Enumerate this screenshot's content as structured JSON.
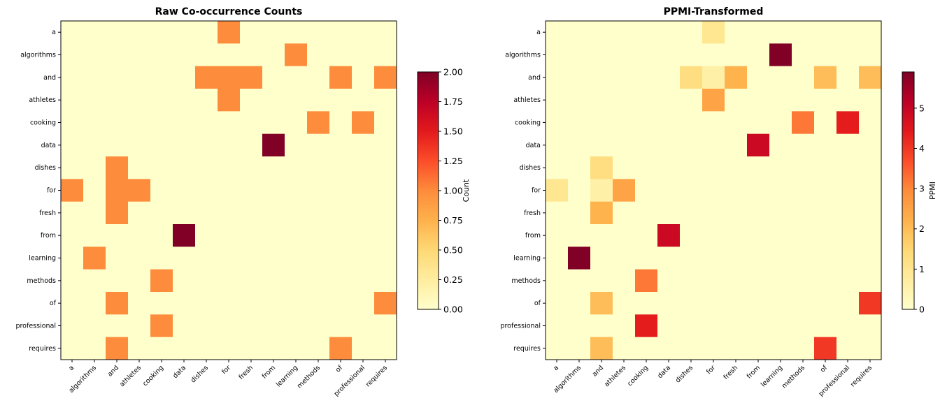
{
  "chart_data": [
    {
      "type": "heatmap",
      "title": "Raw Co-occurrence Counts",
      "colorbar_label": "Count",
      "colormap": "YlOrRd",
      "vmin": 0,
      "vmax": 2,
      "colorbar_ticks": [
        "0.00",
        "0.25",
        "0.50",
        "0.75",
        "1.00",
        "1.25",
        "1.50",
        "1.75",
        "2.00"
      ],
      "labels": [
        "a",
        "algorithms",
        "and",
        "athletes",
        "cooking",
        "data",
        "dishes",
        "for",
        "fresh",
        "from",
        "learning",
        "methods",
        "of",
        "professional",
        "requires"
      ],
      "values": [
        [
          0,
          0,
          0,
          0,
          0,
          0,
          0,
          1,
          0,
          0,
          0,
          0,
          0,
          0,
          0
        ],
        [
          0,
          0,
          0,
          0,
          0,
          0,
          0,
          0,
          0,
          0,
          1,
          0,
          0,
          0,
          0
        ],
        [
          0,
          0,
          0,
          0,
          0,
          0,
          1,
          1,
          1,
          0,
          0,
          0,
          1,
          0,
          1
        ],
        [
          0,
          0,
          0,
          0,
          0,
          0,
          0,
          1,
          0,
          0,
          0,
          0,
          0,
          0,
          0
        ],
        [
          0,
          0,
          0,
          0,
          0,
          0,
          0,
          0,
          0,
          0,
          0,
          1,
          0,
          1,
          0
        ],
        [
          0,
          0,
          0,
          0,
          0,
          0,
          0,
          0,
          0,
          2,
          0,
          0,
          0,
          0,
          0
        ],
        [
          0,
          0,
          1,
          0,
          0,
          0,
          0,
          0,
          0,
          0,
          0,
          0,
          0,
          0,
          0
        ],
        [
          1,
          0,
          1,
          1,
          0,
          0,
          0,
          0,
          0,
          0,
          0,
          0,
          0,
          0,
          0
        ],
        [
          0,
          0,
          1,
          0,
          0,
          0,
          0,
          0,
          0,
          0,
          0,
          0,
          0,
          0,
          0
        ],
        [
          0,
          0,
          0,
          0,
          0,
          2,
          0,
          0,
          0,
          0,
          0,
          0,
          0,
          0,
          0
        ],
        [
          0,
          1,
          0,
          0,
          0,
          0,
          0,
          0,
          0,
          0,
          0,
          0,
          0,
          0,
          0
        ],
        [
          0,
          0,
          0,
          0,
          1,
          0,
          0,
          0,
          0,
          0,
          0,
          0,
          0,
          0,
          0
        ],
        [
          0,
          0,
          1,
          0,
          0,
          0,
          0,
          0,
          0,
          0,
          0,
          0,
          0,
          0,
          1
        ],
        [
          0,
          0,
          0,
          0,
          1,
          0,
          0,
          0,
          0,
          0,
          0,
          0,
          0,
          0,
          0
        ],
        [
          0,
          0,
          1,
          0,
          0,
          0,
          0,
          0,
          0,
          0,
          0,
          0,
          1,
          0,
          0
        ]
      ]
    },
    {
      "type": "heatmap",
      "title": "PPMI-Transformed",
      "colorbar_label": "PPMI",
      "colormap": "YlOrRd",
      "vmin": 0,
      "vmax": 5.9,
      "colorbar_ticks": [
        "0",
        "1",
        "2",
        "3",
        "4",
        "5"
      ],
      "labels": [
        "a",
        "algorithms",
        "and",
        "athletes",
        "cooking",
        "data",
        "dishes",
        "for",
        "fresh",
        "from",
        "learning",
        "methods",
        "of",
        "professional",
        "requires"
      ],
      "values": [
        [
          0,
          0,
          0,
          0,
          0,
          0,
          0,
          1.0,
          0,
          0,
          0,
          0,
          0,
          0,
          0
        ],
        [
          0,
          0,
          0,
          0,
          0,
          0,
          0,
          0,
          0,
          0,
          5.9,
          0,
          0,
          0,
          0
        ],
        [
          0,
          0,
          0,
          0,
          0,
          0,
          1.3,
          0.6,
          2.2,
          0,
          0,
          0,
          2.0,
          0,
          2.0
        ],
        [
          0,
          0,
          0,
          0,
          0,
          0,
          0,
          2.5,
          0,
          0,
          0,
          0,
          0,
          0,
          0
        ],
        [
          0,
          0,
          0,
          0,
          0,
          0,
          0,
          0,
          0,
          0,
          0,
          3.2,
          0,
          4.4,
          0
        ],
        [
          0,
          0,
          0,
          0,
          0,
          0,
          0,
          0,
          0,
          4.9,
          0,
          0,
          0,
          0,
          0
        ],
        [
          0,
          0,
          1.3,
          0,
          0,
          0,
          0,
          0,
          0,
          0,
          0,
          0,
          0,
          0,
          0
        ],
        [
          1.0,
          0,
          0.6,
          2.5,
          0,
          0,
          0,
          0,
          0,
          0,
          0,
          0,
          0,
          0,
          0
        ],
        [
          0,
          0,
          2.2,
          0,
          0,
          0,
          0,
          0,
          0,
          0,
          0,
          0,
          0,
          0,
          0
        ],
        [
          0,
          0,
          0,
          0,
          0,
          4.9,
          0,
          0,
          0,
          0,
          0,
          0,
          0,
          0,
          0
        ],
        [
          0,
          5.9,
          0,
          0,
          0,
          0,
          0,
          0,
          0,
          0,
          0,
          0,
          0,
          0,
          0
        ],
        [
          0,
          0,
          0,
          0,
          3.2,
          0,
          0,
          0,
          0,
          0,
          0,
          0,
          0,
          0,
          0
        ],
        [
          0,
          0,
          2.0,
          0,
          0,
          0,
          0,
          0,
          0,
          0,
          0,
          0,
          0,
          0,
          4.0
        ],
        [
          0,
          0,
          0,
          0,
          4.4,
          0,
          0,
          0,
          0,
          0,
          0,
          0,
          0,
          0,
          0
        ],
        [
          0,
          0,
          2.0,
          0,
          0,
          0,
          0,
          0,
          0,
          0,
          0,
          0,
          4.0,
          0,
          0
        ]
      ]
    }
  ]
}
